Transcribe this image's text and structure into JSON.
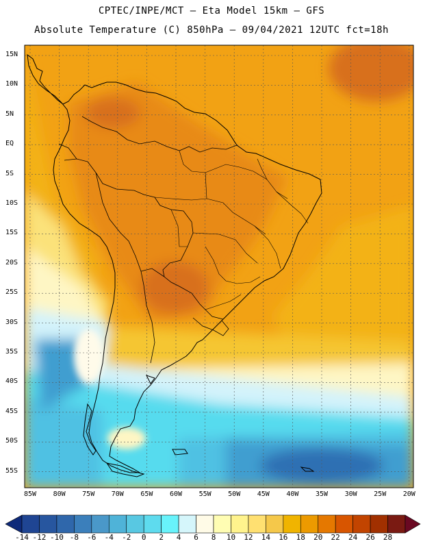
{
  "header": {
    "title_line1": "CPTEC/INPE/MCT –  Eta Model 15km – GFS",
    "title_line2": "Absolute Temperature (C) 850hPa – 09/04/2021 12UTC fct=18h"
  },
  "map": {
    "lat_labels": [
      "15N",
      "10N",
      "5N",
      "EQ",
      "5S",
      "10S",
      "15S",
      "20S",
      "25S",
      "30S",
      "35S",
      "40S",
      "45S",
      "50S",
      "55S"
    ],
    "lon_labels": [
      "85W",
      "80W",
      "75W",
      "70W",
      "65W",
      "60W",
      "55W",
      "50W",
      "45W",
      "40W",
      "35W",
      "30W",
      "25W",
      "20W"
    ]
  },
  "colorbar": {
    "labels": [
      "-14",
      "-12",
      "-10",
      "-8",
      "-6",
      "-4",
      "-2",
      "0",
      "2",
      "4",
      "6",
      "8",
      "10",
      "12",
      "14",
      "16",
      "18",
      "20",
      "22",
      "24",
      "26",
      "28"
    ],
    "colors": [
      "#1f4593",
      "#27569f",
      "#2f67ab",
      "#3b7fbb",
      "#4a98c9",
      "#4fb3d8",
      "#58c8e2",
      "#5edbee",
      "#68f3fb",
      "#d5f6fb",
      "#fffbe7",
      "#fffdb3",
      "#fff38d",
      "#ffe071",
      "#f5c84a",
      "#f0b400",
      "#ec9a00",
      "#e57800",
      "#d85500",
      "#c24400",
      "#a13000",
      "#7a1a12"
    ],
    "end_low": "#0e2a7a",
    "end_high": "#6a0822"
  },
  "legend_tints": {
    "hot": "#d8701f",
    "warm": "#e88a18",
    "orange": "#f2a214",
    "amber": "#f3b213",
    "yellow": "#f5c633",
    "paleyellow": "#fbe27a",
    "cream": "#fef6c4",
    "white": "#fffbea",
    "paleblue": "#d3f3fb",
    "cyan": "#57dbee",
    "lightblue": "#4fc1e3",
    "midblue": "#3f9ed0",
    "darkblue": "#2f6fb3"
  }
}
